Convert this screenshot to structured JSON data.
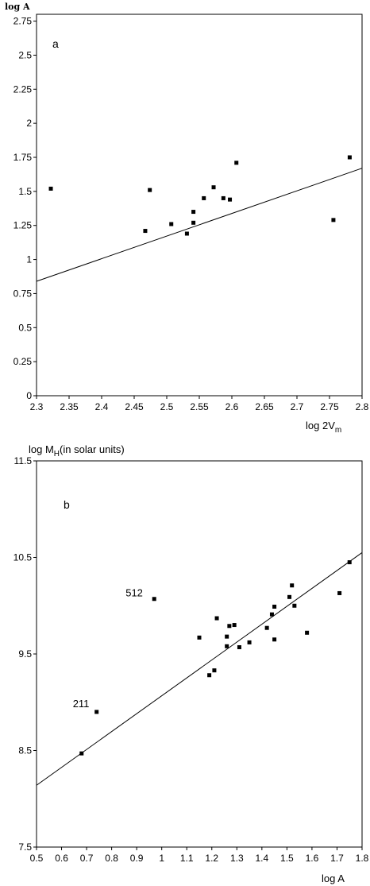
{
  "chart_data": [
    {
      "type": "scatter",
      "panel_label": "a",
      "xlabel": "log 2V",
      "xlabel_sub": "m",
      "ylabel": "log A",
      "xlim": [
        2.3,
        2.8
      ],
      "ylim": [
        0,
        2.8
      ],
      "xticks": [
        "2.3",
        "2.35",
        "2.4",
        "2.45",
        "2.5",
        "2.55",
        "2.6",
        "2.65",
        "2.7",
        "2.75",
        "2.8"
      ],
      "yticks": [
        "0",
        "0.25",
        "0.5",
        "0.75",
        "1",
        "1.25",
        "1.5",
        "1.75",
        "2",
        "2.25",
        "2.5",
        "2.75"
      ],
      "points": [
        [
          2.322,
          1.52
        ],
        [
          2.467,
          1.21
        ],
        [
          2.474,
          1.51
        ],
        [
          2.507,
          1.26
        ],
        [
          2.531,
          1.19
        ],
        [
          2.541,
          1.27
        ],
        [
          2.541,
          1.35
        ],
        [
          2.557,
          1.45
        ],
        [
          2.572,
          1.53
        ],
        [
          2.587,
          1.45
        ],
        [
          2.597,
          1.44
        ],
        [
          2.607,
          1.71
        ],
        [
          2.756,
          1.29
        ],
        [
          2.781,
          1.75
        ]
      ],
      "fit_line": [
        [
          2.3,
          0.84
        ],
        [
          2.8,
          1.67
        ]
      ],
      "annotations": []
    },
    {
      "type": "scatter",
      "panel_label": "b",
      "xlabel": "log A",
      "ylabel": "log M",
      "ylabel_sub": "H",
      "ylabel_suffix": "(in solar units)",
      "xlim": [
        0.5,
        1.8
      ],
      "ylim": [
        7.5,
        11.5
      ],
      "xticks": [
        "0.5",
        "0.6",
        "0.7",
        "0.8",
        "0.9",
        "1",
        "1.1",
        "1.2",
        "1.3",
        "1.4",
        "1.5",
        "1.6",
        "1.7",
        "1.8"
      ],
      "yticks": [
        "7.5",
        "8.5",
        "9.5",
        "10.5",
        "11.5"
      ],
      "points": [
        [
          0.68,
          8.47
        ],
        [
          0.74,
          8.9
        ],
        [
          0.97,
          10.07
        ],
        [
          1.15,
          9.67
        ],
        [
          1.19,
          9.28
        ],
        [
          1.21,
          9.33
        ],
        [
          1.22,
          9.87
        ],
        [
          1.26,
          9.58
        ],
        [
          1.26,
          9.68
        ],
        [
          1.27,
          9.79
        ],
        [
          1.29,
          9.8
        ],
        [
          1.31,
          9.57
        ],
        [
          1.35,
          9.62
        ],
        [
          1.42,
          9.77
        ],
        [
          1.44,
          9.91
        ],
        [
          1.45,
          9.99
        ],
        [
          1.45,
          9.65
        ],
        [
          1.51,
          10.09
        ],
        [
          1.52,
          10.21
        ],
        [
          1.53,
          10.0
        ],
        [
          1.58,
          9.72
        ],
        [
          1.71,
          10.13
        ],
        [
          1.75,
          10.45
        ]
      ],
      "fit_line": [
        [
          0.5,
          8.14
        ],
        [
          1.8,
          10.55
        ]
      ],
      "annotations": [
        {
          "text": "512",
          "x": 0.97,
          "y": 10.07
        },
        {
          "text": "211",
          "x": 0.74,
          "y": 8.9
        }
      ]
    }
  ]
}
